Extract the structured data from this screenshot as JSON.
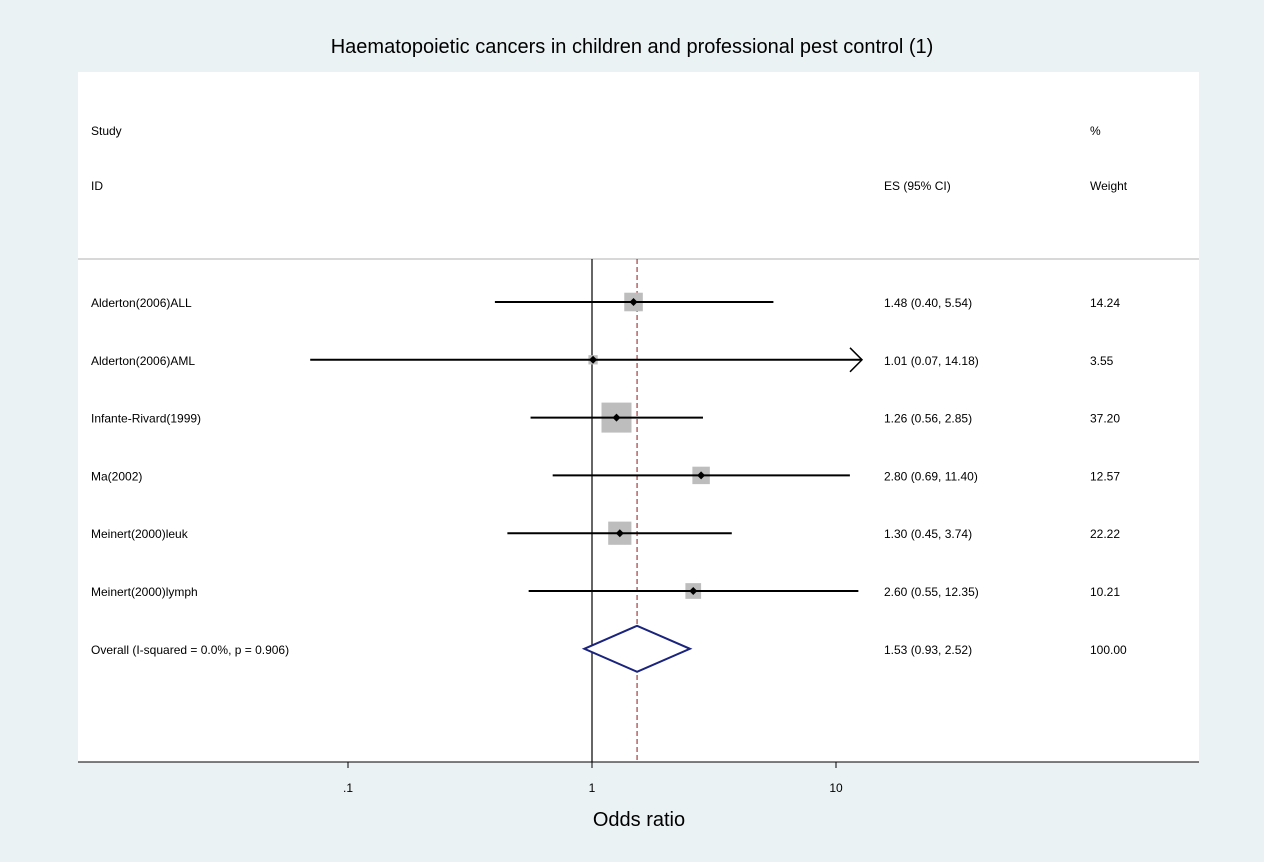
{
  "chart_data": {
    "type": "forest",
    "title": "Haematopoietic cancers in children and professional pest control (1)",
    "xlabel": "Odds ratio",
    "x_scale": "log",
    "xlim": [
      0.01,
      100
    ],
    "null_value": 1,
    "pooled_estimate": 1.53,
    "x_ticks": [
      {
        "value": 0.1,
        "label": ".1"
      },
      {
        "value": 1,
        "label": "1"
      },
      {
        "value": 10,
        "label": "10"
      }
    ],
    "header": {
      "study_line1": "Study",
      "study_line2": "ID",
      "es_label": "ES (95% CI)",
      "weight_line1": "%",
      "weight_line2": "Weight"
    },
    "studies": [
      {
        "id": "Alderton(2006)ALL",
        "es": 1.48,
        "lo": 0.4,
        "hi": 5.54,
        "es_text": "1.48 (0.40, 5.54)",
        "weight": 14.24,
        "weight_text": "14.24",
        "arrow_right": false
      },
      {
        "id": "Alderton(2006)AML",
        "es": 1.01,
        "lo": 0.07,
        "hi": 14.18,
        "es_text": "1.01 (0.07, 14.18)",
        "weight": 3.55,
        "weight_text": "3.55",
        "arrow_right": true
      },
      {
        "id": "Infante-Rivard(1999)",
        "es": 1.26,
        "lo": 0.56,
        "hi": 2.85,
        "es_text": "1.26 (0.56, 2.85)",
        "weight": 37.2,
        "weight_text": "37.20",
        "arrow_right": false
      },
      {
        "id": "Ma(2002)",
        "es": 2.8,
        "lo": 0.69,
        "hi": 11.4,
        "es_text": "2.80 (0.69, 11.40)",
        "weight": 12.57,
        "weight_text": "12.57",
        "arrow_right": false
      },
      {
        "id": "Meinert(2000)leuk",
        "es": 1.3,
        "lo": 0.45,
        "hi": 3.74,
        "es_text": "1.30 (0.45, 3.74)",
        "weight": 22.22,
        "weight_text": "22.22",
        "arrow_right": false
      },
      {
        "id": "Meinert(2000)lymph",
        "es": 2.6,
        "lo": 0.55,
        "hi": 12.35,
        "es_text": "2.60 (0.55, 12.35)",
        "weight": 10.21,
        "weight_text": "10.21",
        "arrow_right": false
      }
    ],
    "overall": {
      "id": "Overall  (I-squared = 0.0%, p = 0.906)",
      "es": 1.53,
      "lo": 0.93,
      "hi": 2.52,
      "es_text": "1.53 (0.93, 2.52)",
      "weight_text": "100.00"
    },
    "colors": {
      "background": "#eaf2f3",
      "plot_area": "#ffffff",
      "weight_box": "#bdbdbd",
      "pooled_line": "#8b1a1a",
      "diamond": "#1a237e",
      "line": "#000000"
    }
  }
}
